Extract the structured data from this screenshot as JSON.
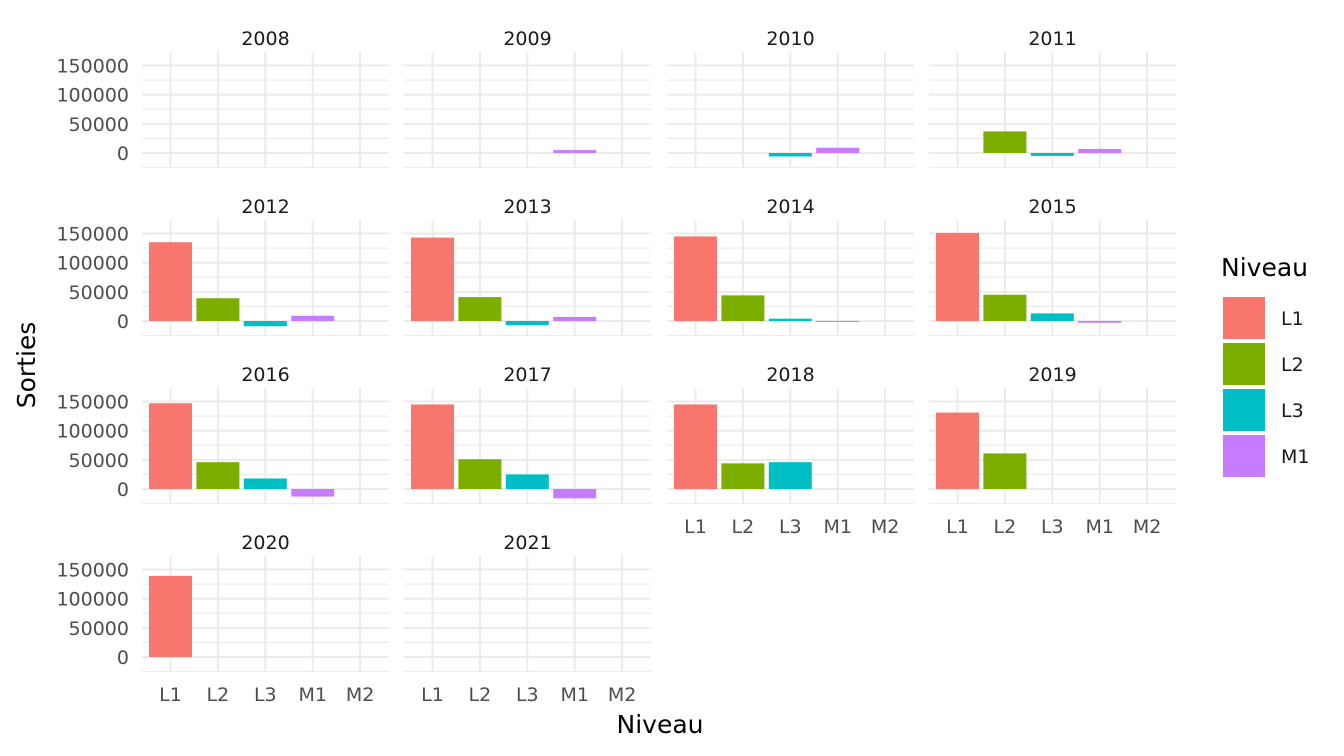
{
  "chart_data": {
    "type": "bar",
    "facet_by": "year",
    "xlabel": "Niveau",
    "ylabel": "Sorties",
    "categories": [
      "L1",
      "L2",
      "L3",
      "M1",
      "M2"
    ],
    "y_ticks": [
      "0",
      "50000",
      "100000",
      "150000"
    ],
    "ylim": [
      -20000,
      165000
    ],
    "grid": true,
    "legend": {
      "title": "Niveau",
      "position": "right",
      "entries": [
        {
          "label": "L1",
          "color": "#F8766D"
        },
        {
          "label": "L2",
          "color": "#7CAE00"
        },
        {
          "label": "L3",
          "color": "#00BFC4"
        },
        {
          "label": "M1",
          "color": "#C77CFF"
        }
      ]
    },
    "colors": {
      "L1": "#F8766D",
      "L2": "#7CAE00",
      "L3": "#00BFC4",
      "M1": "#C77CFF"
    },
    "panels": [
      {
        "year": "2008",
        "values": {}
      },
      {
        "year": "2009",
        "values": {
          "M1": 5000
        }
      },
      {
        "year": "2010",
        "values": {
          "L3": -6000,
          "M1": 9000
        }
      },
      {
        "year": "2011",
        "values": {
          "L2": 37000,
          "L3": -5000,
          "M1": 7000
        }
      },
      {
        "year": "2012",
        "values": {
          "L1": 135000,
          "L2": 39000,
          "L3": -9000,
          "M1": 9000
        }
      },
      {
        "year": "2013",
        "values": {
          "L1": 143000,
          "L2": 41000,
          "L3": -7000,
          "M1": 7000
        }
      },
      {
        "year": "2014",
        "values": {
          "L1": 145000,
          "L2": 44000,
          "L3": 4000,
          "M1": -1000
        }
      },
      {
        "year": "2015",
        "values": {
          "L1": 151000,
          "L2": 45000,
          "L3": 13000,
          "M1": -3000
        }
      },
      {
        "year": "2016",
        "values": {
          "L1": 147000,
          "L2": 46000,
          "L3": 18000,
          "M1": -13000
        }
      },
      {
        "year": "2017",
        "values": {
          "L1": 145000,
          "L2": 51000,
          "L3": 25000,
          "M1": -16000
        }
      },
      {
        "year": "2018",
        "values": {
          "L1": 145000,
          "L2": 44000,
          "L3": 46000
        }
      },
      {
        "year": "2019",
        "values": {
          "L1": 131000,
          "L2": 61000
        }
      },
      {
        "year": "2020",
        "values": {
          "L1": 139000
        }
      },
      {
        "year": "2021",
        "values": {}
      }
    ]
  }
}
